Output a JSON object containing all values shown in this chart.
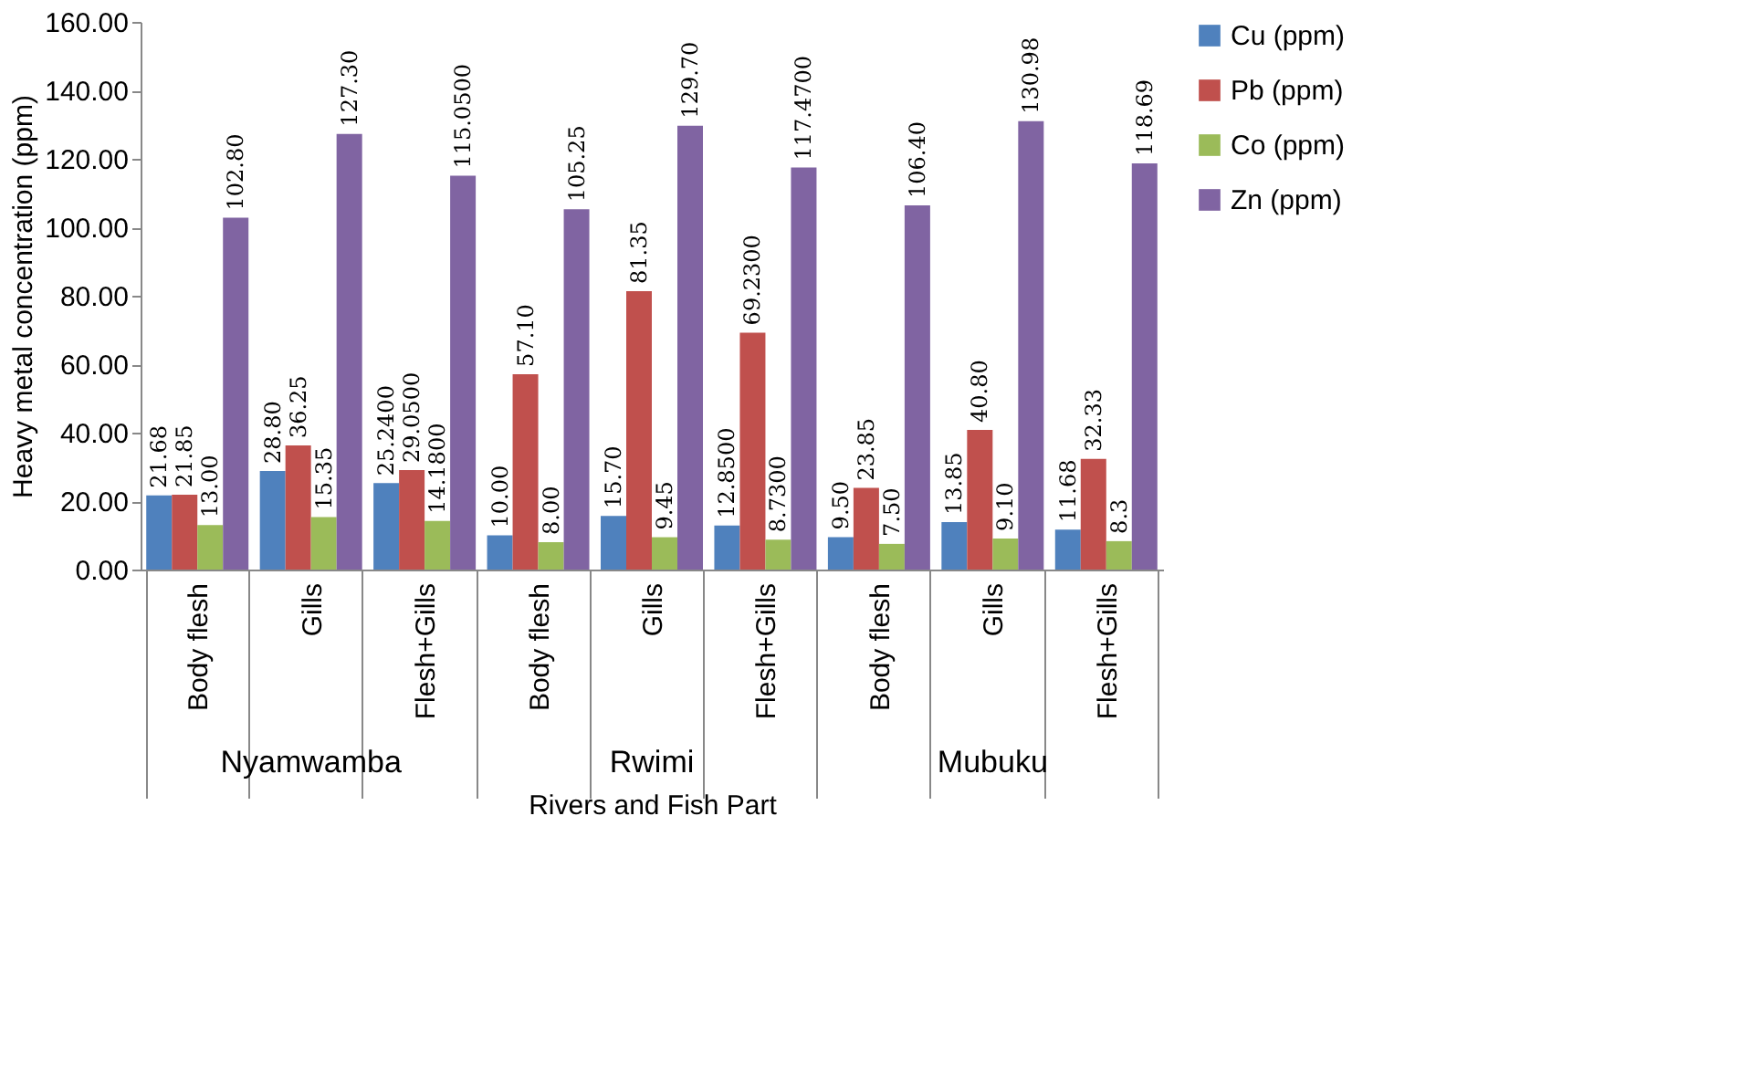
{
  "chart_data": {
    "type": "bar",
    "xlabel": "Rivers and Fish Part",
    "ylabel": "Heavy metal concentration (ppm)",
    "categories": [
      "Body flesh",
      "Gills",
      "Flesh+Gills",
      "Body flesh",
      "Gills",
      "Flesh+Gills",
      "Body flesh",
      "Gills",
      "Flesh+Gills"
    ],
    "annotations": [
      "Nyamwamba",
      "Rwimi",
      "Mubuku"
    ],
    "series": [
      {
        "name": "Cu (ppm)",
        "color": "#4f81bd",
        "values": [
          21.68,
          28.8,
          25.24,
          10.0,
          15.7,
          12.85,
          9.5,
          13.85,
          11.68
        ],
        "value_labels": [
          "21.68",
          "28.80",
          "25.2400",
          "10.00",
          "15.70",
          "12.8500",
          "9.50",
          "13.85",
          "11.68"
        ]
      },
      {
        "name": "Pb (ppm)",
        "color": "#c0504d",
        "values": [
          21.85,
          36.25,
          29.05,
          57.1,
          81.35,
          69.23,
          23.85,
          40.8,
          32.33
        ],
        "value_labels": [
          "21.85",
          "36.25",
          "29.0500",
          "57.10",
          "81.35",
          "69.2300",
          "23.85",
          "40.80",
          "32.33"
        ]
      },
      {
        "name": "Co (ppm)",
        "color": "#9bbb59",
        "values": [
          13.0,
          15.35,
          14.18,
          8.0,
          9.45,
          8.73,
          7.5,
          9.1,
          8.3
        ],
        "value_labels": [
          "13.00",
          "15.35",
          "14.1800",
          "8.00",
          "9.45",
          "8.7300",
          "7.50",
          "9.10",
          "8.3"
        ]
      },
      {
        "name": "Zn (ppm)",
        "color": "#8064a2",
        "values": [
          102.8,
          127.3,
          115.05,
          105.25,
          129.7,
          117.47,
          106.4,
          130.98,
          118.69
        ],
        "value_labels": [
          "102.80",
          "127.30",
          "115.0500",
          "105.25",
          "129.70",
          "117.4700",
          "106.40",
          "130.98",
          "118.69"
        ]
      }
    ],
    "ylim": [
      0,
      160
    ],
    "yticks": [
      {
        "value": 0,
        "label": "0.00"
      },
      {
        "value": 20,
        "label": "20.00"
      },
      {
        "value": 40,
        "label": "40.00"
      },
      {
        "value": 60,
        "label": "60.00"
      },
      {
        "value": 80,
        "label": "80.00"
      },
      {
        "value": 100,
        "label": "100.00"
      },
      {
        "value": 120,
        "label": "120.00"
      },
      {
        "value": 140,
        "label": "140.00"
      },
      {
        "value": 160,
        "label": "160.00"
      }
    ],
    "grid": false,
    "legend": "right"
  }
}
